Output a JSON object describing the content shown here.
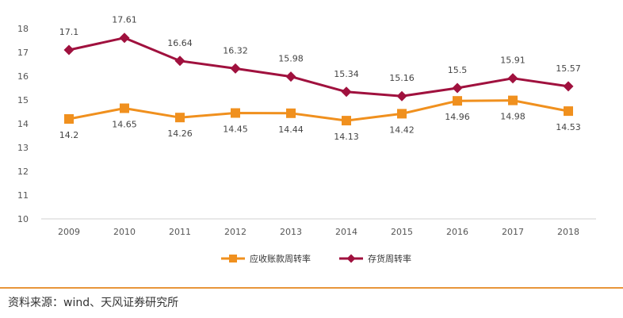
{
  "chart_data": {
    "type": "line",
    "x": [
      "2009",
      "2010",
      "2011",
      "2012",
      "2013",
      "2014",
      "2015",
      "2016",
      "2017",
      "2018"
    ],
    "ylim": [
      10,
      18
    ],
    "yticks": [
      "10",
      "11",
      "12",
      "13",
      "14",
      "15",
      "16",
      "17",
      "18"
    ],
    "series": [
      {
        "name": "应收账款周转率",
        "color": "#f0901e",
        "marker": "square",
        "values": [
          14.2,
          14.65,
          14.26,
          14.45,
          14.44,
          14.13,
          14.42,
          14.96,
          14.98,
          14.53
        ],
        "labels": [
          "14.2",
          "14.65",
          "14.26",
          "14.45",
          "14.44",
          "14.13",
          "14.42",
          "14.96",
          "14.98",
          "14.53"
        ]
      },
      {
        "name": "存货周转率",
        "color": "#a0113e",
        "marker": "diamond",
        "values": [
          17.1,
          17.61,
          16.64,
          16.32,
          15.98,
          15.34,
          15.16,
          15.5,
          15.91,
          15.57
        ],
        "labels": [
          "17.1",
          "17.61",
          "16.64",
          "16.32",
          "15.98",
          "15.34",
          "15.16",
          "15.5",
          "15.91",
          "15.57"
        ]
      }
    ],
    "legend_position": "bottom-center"
  },
  "source": "资料来源：wind、天风证券研究所",
  "colors": {
    "axis": "#d0d0d0",
    "footer_line": "#e8963a"
  }
}
